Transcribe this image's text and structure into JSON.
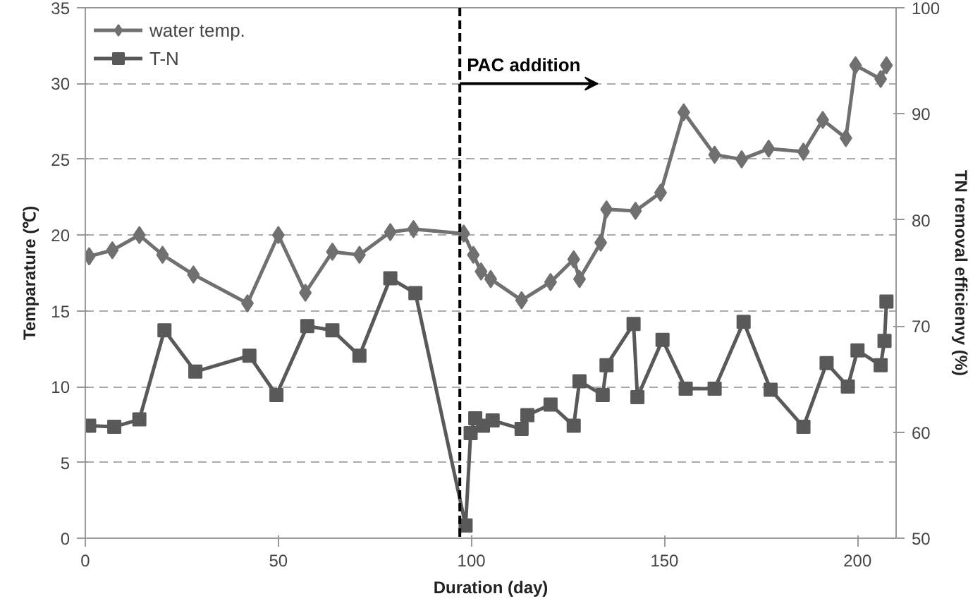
{
  "chart_data": {
    "type": "line",
    "xlabel": "Duration (day)",
    "ylabel": "Temparature (℃)",
    "y2label": "TN removal efficienvy (%)",
    "xlim": [
      0,
      210
    ],
    "xticks": [
      0,
      50,
      100,
      150,
      200
    ],
    "ylim": [
      0,
      35
    ],
    "yticks": [
      0,
      5,
      10,
      15,
      20,
      25,
      30,
      35
    ],
    "y2lim": [
      50,
      100
    ],
    "y2ticks": [
      50,
      60,
      70,
      80,
      90,
      100
    ],
    "grid": "y",
    "legend": "top left",
    "ref_lines": [
      {
        "axis": "x",
        "value": 97,
        "label": "PAC addition",
        "color": "#000000",
        "line_style": "dashed"
      }
    ],
    "series": [
      {
        "name": "water temp.",
        "color": "#707070",
        "marker": "diamond",
        "x": [
          1,
          7,
          14,
          20,
          28,
          42,
          50,
          57,
          64,
          71,
          79,
          85,
          98,
          100.5,
          102.5,
          105,
          113,
          120.5,
          126.5,
          128,
          133.5,
          135,
          142.5,
          149,
          155,
          163,
          170,
          177,
          186,
          191,
          197,
          199.5,
          206,
          207.5
        ],
        "values": [
          18.6,
          19.0,
          20.0,
          18.7,
          17.4,
          15.5,
          20.0,
          16.2,
          18.9,
          18.7,
          20.2,
          20.4,
          20.1,
          18.7,
          17.6,
          17.1,
          15.7,
          16.9,
          18.4,
          17.1,
          19.5,
          21.7,
          21.6,
          22.8,
          28.1,
          25.3,
          25.0,
          25.7,
          25.5,
          27.6,
          26.4,
          31.2,
          30.3,
          31.2
        ]
      },
      {
        "name": "T-N",
        "color": "#595959",
        "marker": "square",
        "axis": "y2",
        "x": [
          1,
          7.5,
          14,
          20.5,
          28.5,
          42.5,
          49.5,
          57.5,
          64,
          71,
          79,
          85.5,
          98.5,
          99.8,
          101,
          103,
          105.5,
          113,
          114.5,
          120.5,
          126.5,
          128,
          134,
          135,
          142,
          143,
          149.5,
          155.5,
          163,
          170.5,
          177.5,
          186,
          192,
          197.5,
          200,
          206,
          207,
          207.5
        ],
        "values": [
          60.6,
          60.5,
          61.2,
          69.6,
          65.7,
          67.2,
          63.5,
          70.0,
          69.6,
          67.2,
          74.5,
          73.1,
          51.2,
          59.9,
          61.3,
          60.6,
          61.1,
          60.3,
          61.6,
          62.6,
          60.6,
          64.8,
          63.5,
          66.3,
          70.2,
          63.3,
          68.7,
          64.1,
          64.1,
          70.4,
          64.0,
          60.5,
          66.5,
          64.3,
          67.7,
          66.3,
          68.6,
          72.3
        ]
      }
    ]
  }
}
